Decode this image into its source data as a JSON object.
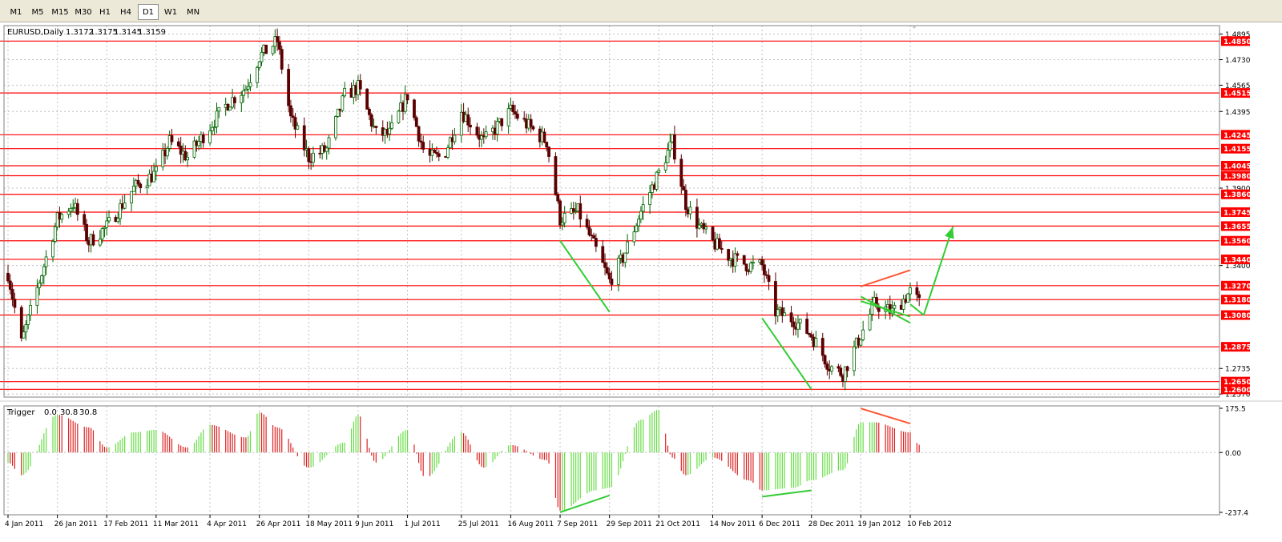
{
  "toolbar": {
    "timeframes": [
      {
        "label": "M1",
        "active": false
      },
      {
        "label": "M5",
        "active": false
      },
      {
        "label": "M15",
        "active": false
      },
      {
        "label": "M30",
        "active": false
      },
      {
        "label": "H1",
        "active": false
      },
      {
        "label": "H4",
        "active": false
      },
      {
        "label": "D1",
        "active": true
      },
      {
        "label": "W1",
        "active": false
      },
      {
        "label": "MN",
        "active": false
      }
    ]
  },
  "colors": {
    "bull_candle": "#006400",
    "bear_candle": "#5a0000",
    "level_line": "#ff0000",
    "level_tag_bg": "#ff0000",
    "trend_green": "#33cc33",
    "trend_red": "#ff5533",
    "hist_green": "#66dd44",
    "hist_red": "#dd2222",
    "chart_bg": "#ffffff",
    "grid": "#c0c0c0"
  },
  "chart_data": [
    {
      "type": "candlestick",
      "title": "EURUSD,Daily",
      "ohlc_readout": [
        "1.3172",
        "1.3175",
        "1.3145",
        "1.3159"
      ],
      "ylim": [
        1.255,
        1.495
      ],
      "y_ticks": [
        "1.4895",
        "1.4730",
        "1.4565",
        "1.4395",
        "1.3900",
        "1.3400",
        "1.2735",
        "1.2570"
      ],
      "key_levels": [
        "1.4850",
        "1.4515",
        "1.4245",
        "1.4155",
        "1.4045",
        "1.3980",
        "1.3860",
        "1.3745",
        "1.3655",
        "1.3560",
        "1.3440",
        "1.3270",
        "1.3180",
        "1.3080",
        "1.2875",
        "1.2650",
        "1.2600"
      ],
      "x_labels": [
        "4 Jan 2011",
        "26 Jan 2011",
        "17 Feb 2011",
        "11 Mar 2011",
        "4 Apr 2011",
        "26 Apr 2011",
        "18 May 2011",
        "9 Jun 2011",
        "1 Jul 2011",
        "25 Jul 2011",
        "16 Aug 2011",
        "7 Sep 2011",
        "29 Sep 2011",
        "21 Oct 2011",
        "14 Nov 2011",
        "6 Dec 2011",
        "28 Dec 2011",
        "19 Jan 2012",
        "10 Feb 2012"
      ],
      "close_path": [
        [
          "4 Jan 2011",
          1.335
        ],
        [
          "10 Jan 2011",
          1.29
        ],
        [
          "26 Jan 2011",
          1.37
        ],
        [
          "2 Feb 2011",
          1.38
        ],
        [
          "9 Feb 2011",
          1.355
        ],
        [
          "17 Feb 2011",
          1.365
        ],
        [
          "1 Mar 2011",
          1.39
        ],
        [
          "11 Mar 2011",
          1.4
        ],
        [
          "17 Mar 2011",
          1.42
        ],
        [
          "25 Mar 2011",
          1.41
        ],
        [
          "4 Apr 2011",
          1.43
        ],
        [
          "12 Apr 2011",
          1.445
        ],
        [
          "20 Apr 2011",
          1.455
        ],
        [
          "26 Apr 2011",
          1.475
        ],
        [
          "4 May 2011",
          1.485
        ],
        [
          "10 May 2011",
          1.435
        ],
        [
          "18 May 2011",
          1.41
        ],
        [
          "26 May 2011",
          1.415
        ],
        [
          "3 Jun 2011",
          1.45
        ],
        [
          "9 Jun 2011",
          1.455
        ],
        [
          "17 Jun 2011",
          1.425
        ],
        [
          "23 Jun 2011",
          1.425
        ],
        [
          "1 Jul 2011",
          1.45
        ],
        [
          "9 Jul 2011",
          1.41
        ],
        [
          "17 Jul 2011",
          1.41
        ],
        [
          "25 Jul 2011",
          1.44
        ],
        [
          "4 Aug 2011",
          1.42
        ],
        [
          "10 Aug 2011",
          1.43
        ],
        [
          "16 Aug 2011",
          1.44
        ],
        [
          "24 Aug 2011",
          1.43
        ],
        [
          "1 Sep 2011",
          1.42
        ],
        [
          "7 Sep 2011",
          1.37
        ],
        [
          "15 Sep 2011",
          1.375
        ],
        [
          "23 Sep 2011",
          1.35
        ],
        [
          "29 Sep 2011",
          1.33
        ],
        [
          "5 Oct 2011",
          1.345
        ],
        [
          "13 Oct 2011",
          1.375
        ],
        [
          "21 Oct 2011",
          1.4
        ],
        [
          "27 Oct 2011",
          1.42
        ],
        [
          "2 Nov 2011",
          1.38
        ],
        [
          "8 Nov 2011",
          1.365
        ],
        [
          "14 Nov 2011",
          1.355
        ],
        [
          "22 Nov 2011",
          1.345
        ],
        [
          "30 Nov 2011",
          1.34
        ],
        [
          "6 Dec 2011",
          1.34
        ],
        [
          "12 Dec 2011",
          1.31
        ],
        [
          "20 Dec 2011",
          1.305
        ],
        [
          "28 Dec 2011",
          1.295
        ],
        [
          "5 Jan 2012",
          1.275
        ],
        [
          "11 Jan 2012",
          1.27
        ],
        [
          "19 Jan 2012",
          1.295
        ],
        [
          "25 Jan 2012",
          1.315
        ],
        [
          "2 Feb 2012",
          1.31
        ],
        [
          "10 Feb 2012",
          1.323
        ],
        [
          "14 Feb 2012",
          1.3159
        ]
      ]
    },
    {
      "type": "bar",
      "title": "Trigger",
      "readout": [
        "0.0",
        "30.8",
        "30.8"
      ],
      "y_ticks": [
        "175.5",
        "0.00",
        "-237.4"
      ],
      "ylim": [
        -237.4,
        175.5
      ],
      "x": [
        "4 Jan 2011",
        "10 Jan 2011",
        "26 Jan 2011",
        "9 Feb 2011",
        "17 Feb 2011",
        "1 Mar 2011",
        "11 Mar 2011",
        "25 Mar 2011",
        "4 Apr 2011",
        "20 Apr 2011",
        "26 Apr 2011",
        "4 May 2011",
        "18 May 2011",
        "3 Jun 2011",
        "9 Jun 2011",
        "17 Jun 2011",
        "1 Jul 2011",
        "9 Jul 2011",
        "25 Jul 2011",
        "4 Aug 2011",
        "16 Aug 2011",
        "1 Sep 2011",
        "7 Sep 2011",
        "23 Sep 2011",
        "29 Sep 2011",
        "13 Oct 2011",
        "21 Oct 2011",
        "27 Oct 2011",
        "2 Nov 2011",
        "14 Nov 2011",
        "30 Nov 2011",
        "6 Dec 2011",
        "20 Dec 2011",
        "28 Dec 2011",
        "11 Jan 2012",
        "19 Jan 2012",
        "25 Jan 2012",
        "10 Feb 2012",
        "14 Feb 2012"
      ],
      "values": [
        -40,
        -90,
        150,
        100,
        20,
        80,
        90,
        20,
        110,
        60,
        160,
        100,
        -60,
        40,
        150,
        -40,
        90,
        -100,
        80,
        -60,
        30,
        -30,
        -230,
        -150,
        -140,
        130,
        170,
        -20,
        -90,
        -20,
        -110,
        -150,
        -140,
        -110,
        -70,
        120,
        120,
        80,
        30.8
      ]
    }
  ],
  "drawings": {
    "price_trendlines": [
      {
        "color": "green",
        "from": [
          "7 Sep 2011",
          1.356
        ],
        "to": [
          "29 Sep 2011",
          1.31
        ]
      },
      {
        "color": "green",
        "from": [
          "6 Dec 2011",
          1.306
        ],
        "to": [
          "28 Dec 2011",
          1.26
        ]
      },
      {
        "color": "red",
        "from": [
          "19 Jan 2012",
          1.3265
        ],
        "to": [
          "10 Feb 2012",
          1.337
        ]
      },
      {
        "color": "green",
        "from": [
          "19 Jan 2012",
          1.32
        ],
        "to": [
          "10 Feb 2012",
          1.303
        ]
      },
      {
        "color": "green",
        "from": [
          "19 Jan 2012",
          1.317
        ],
        "to": [
          "10 Feb 2012",
          1.307
        ]
      },
      {
        "color": "green",
        "from": [
          "10 Feb 2012",
          1.315
        ],
        "to": [
          "16 Feb 2012",
          1.308
        ]
      }
    ],
    "arrow": {
      "color": "green",
      "from": [
        "16 Feb 2012",
        1.308
      ],
      "to": [
        "29 Feb 2012",
        1.365
      ]
    },
    "indicator_trendlines": [
      {
        "color": "green",
        "from": [
          "7 Sep 2011",
          -237
        ],
        "to": [
          "29 Sep 2011",
          -170
        ]
      },
      {
        "color": "green",
        "from": [
          "6 Dec 2011",
          -175
        ],
        "to": [
          "28 Dec 2011",
          -150
        ]
      },
      {
        "color": "red",
        "from": [
          "19 Jan 2012",
          175
        ],
        "to": [
          "10 Feb 2012",
          115
        ]
      }
    ]
  }
}
